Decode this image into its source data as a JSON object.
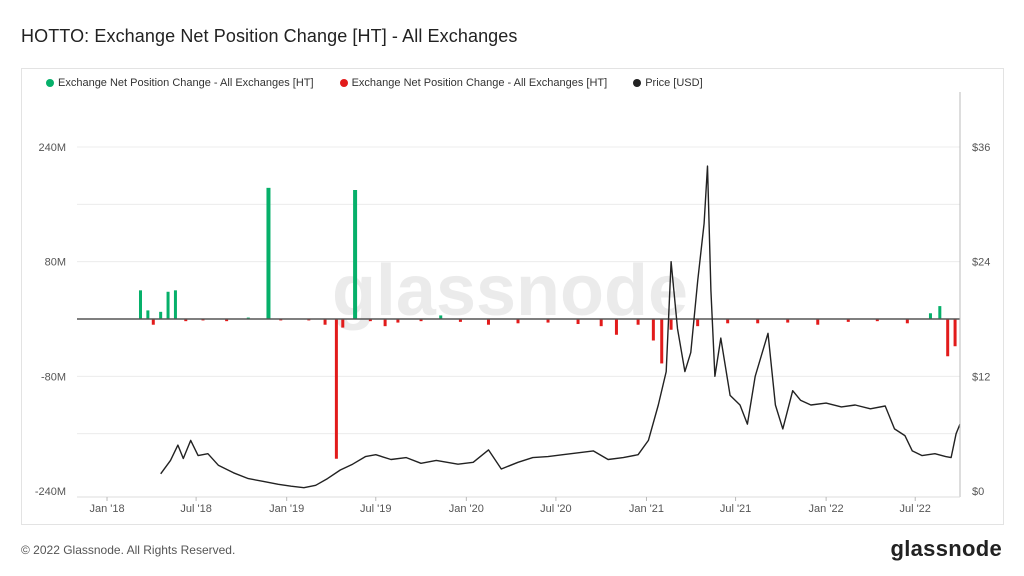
{
  "title": "HOTTO: Exchange Net Position Change [HT] - All Exchanges",
  "watermark": "glassnode",
  "footer": {
    "copyright": "© 2022 Glassnode. All Rights Reserved.",
    "logo": "glassnode"
  },
  "colors": {
    "positive": "#06b06a",
    "negative": "#e21b1b",
    "price": "#222222",
    "grid": "#ececec"
  },
  "chart_data": {
    "type": "bar",
    "title": "HOTTO: Exchange Net Position Change [HT] - All Exchanges",
    "legend": [
      {
        "label": "Exchange Net Position Change - All Exchanges [HT]",
        "color": "#06b06a"
      },
      {
        "label": "Exchange Net Position Change - All Exchanges [HT]",
        "color": "#e21b1b"
      },
      {
        "label": "Price [USD]",
        "color": "#222222"
      }
    ],
    "legend_position": "top-left",
    "x_ticks": [
      "Jan '18",
      "Jul '18",
      "Jan '19",
      "Jul '19",
      "Jan '20",
      "Jul '20",
      "Jan '21",
      "Jul '21",
      "Jan '22",
      "Jul '22"
    ],
    "y_left": {
      "ticks": [
        "240M",
        "80M",
        "-80M",
        "-240M"
      ],
      "range": [
        -240000000,
        240000000
      ]
    },
    "y_right": {
      "ticks": [
        "$36",
        "$24",
        "$12",
        "$0"
      ],
      "range": [
        0,
        36
      ]
    },
    "grid": true,
    "x_range": [
      "2017-11-01",
      "2022-09-30"
    ],
    "net_position_series": [
      {
        "date": "2018-03-10",
        "value": 40000000
      },
      {
        "date": "2018-03-25",
        "value": 12000000
      },
      {
        "date": "2018-04-05",
        "value": -8000000
      },
      {
        "date": "2018-04-20",
        "value": 10000000
      },
      {
        "date": "2018-05-05",
        "value": 38000000
      },
      {
        "date": "2018-05-20",
        "value": 40000000
      },
      {
        "date": "2018-06-10",
        "value": -3000000
      },
      {
        "date": "2018-07-15",
        "value": -2000000
      },
      {
        "date": "2018-09-01",
        "value": -3000000
      },
      {
        "date": "2018-10-15",
        "value": 2000000
      },
      {
        "date": "2018-11-25",
        "value": 183000000
      },
      {
        "date": "2018-12-20",
        "value": -2000000
      },
      {
        "date": "2019-02-15",
        "value": -2000000
      },
      {
        "date": "2019-03-20",
        "value": -8000000
      },
      {
        "date": "2019-04-12",
        "value": -195000000
      },
      {
        "date": "2019-04-25",
        "value": -12000000
      },
      {
        "date": "2019-05-20",
        "value": 180000000
      },
      {
        "date": "2019-06-20",
        "value": -3000000
      },
      {
        "date": "2019-07-20",
        "value": -10000000
      },
      {
        "date": "2019-08-15",
        "value": -5000000
      },
      {
        "date": "2019-10-01",
        "value": -3000000
      },
      {
        "date": "2019-11-10",
        "value": 5000000
      },
      {
        "date": "2019-12-20",
        "value": -4000000
      },
      {
        "date": "2020-02-15",
        "value": -8000000
      },
      {
        "date": "2020-04-15",
        "value": -6000000
      },
      {
        "date": "2020-06-15",
        "value": -5000000
      },
      {
        "date": "2020-08-15",
        "value": -7000000
      },
      {
        "date": "2020-10-01",
        "value": -10000000
      },
      {
        "date": "2020-11-01",
        "value": -22000000
      },
      {
        "date": "2020-12-15",
        "value": -8000000
      },
      {
        "date": "2021-01-15",
        "value": -30000000
      },
      {
        "date": "2021-02-01",
        "value": -62000000
      },
      {
        "date": "2021-02-20",
        "value": -15000000
      },
      {
        "date": "2021-04-15",
        "value": -10000000
      },
      {
        "date": "2021-06-15",
        "value": -6000000
      },
      {
        "date": "2021-08-15",
        "value": -6000000
      },
      {
        "date": "2021-10-15",
        "value": -5000000
      },
      {
        "date": "2021-12-15",
        "value": -8000000
      },
      {
        "date": "2022-02-15",
        "value": -4000000
      },
      {
        "date": "2022-04-15",
        "value": -3000000
      },
      {
        "date": "2022-06-15",
        "value": -6000000
      },
      {
        "date": "2022-08-01",
        "value": 8000000
      },
      {
        "date": "2022-08-20",
        "value": 18000000
      },
      {
        "date": "2022-09-05",
        "value": -52000000
      },
      {
        "date": "2022-09-20",
        "value": -38000000
      }
    ],
    "price_series": [
      {
        "date": "2018-04-20",
        "value": 1.8
      },
      {
        "date": "2018-05-10",
        "value": 3.2
      },
      {
        "date": "2018-05-25",
        "value": 4.8
      },
      {
        "date": "2018-06-05",
        "value": 3.4
      },
      {
        "date": "2018-06-20",
        "value": 5.3
      },
      {
        "date": "2018-07-05",
        "value": 3.7
      },
      {
        "date": "2018-07-25",
        "value": 3.9
      },
      {
        "date": "2018-08-15",
        "value": 2.7
      },
      {
        "date": "2018-09-15",
        "value": 1.9
      },
      {
        "date": "2018-10-15",
        "value": 1.3
      },
      {
        "date": "2018-11-15",
        "value": 1.0
      },
      {
        "date": "2018-12-15",
        "value": 0.7
      },
      {
        "date": "2019-01-10",
        "value": 0.5
      },
      {
        "date": "2019-02-05",
        "value": 0.35
      },
      {
        "date": "2019-03-01",
        "value": 0.6
      },
      {
        "date": "2019-03-25",
        "value": 1.3
      },
      {
        "date": "2019-04-20",
        "value": 2.2
      },
      {
        "date": "2019-05-15",
        "value": 2.8
      },
      {
        "date": "2019-06-10",
        "value": 3.6
      },
      {
        "date": "2019-07-01",
        "value": 3.8
      },
      {
        "date": "2019-08-01",
        "value": 3.3
      },
      {
        "date": "2019-09-01",
        "value": 3.5
      },
      {
        "date": "2019-10-01",
        "value": 2.9
      },
      {
        "date": "2019-11-01",
        "value": 3.2
      },
      {
        "date": "2019-12-15",
        "value": 2.8
      },
      {
        "date": "2020-01-15",
        "value": 3.0
      },
      {
        "date": "2020-02-15",
        "value": 4.3
      },
      {
        "date": "2020-03-12",
        "value": 2.3
      },
      {
        "date": "2020-04-15",
        "value": 3.0
      },
      {
        "date": "2020-05-15",
        "value": 3.5
      },
      {
        "date": "2020-06-15",
        "value": 3.6
      },
      {
        "date": "2020-07-15",
        "value": 3.8
      },
      {
        "date": "2020-08-15",
        "value": 4.0
      },
      {
        "date": "2020-09-15",
        "value": 4.2
      },
      {
        "date": "2020-10-15",
        "value": 3.3
      },
      {
        "date": "2020-11-15",
        "value": 3.5
      },
      {
        "date": "2020-12-15",
        "value": 3.8
      },
      {
        "date": "2021-01-05",
        "value": 5.3
      },
      {
        "date": "2021-01-25",
        "value": 9.0
      },
      {
        "date": "2021-02-10",
        "value": 12.5
      },
      {
        "date": "2021-02-20",
        "value": 24.0
      },
      {
        "date": "2021-03-05",
        "value": 17.0
      },
      {
        "date": "2021-03-20",
        "value": 12.5
      },
      {
        "date": "2021-04-01",
        "value": 14.5
      },
      {
        "date": "2021-04-15",
        "value": 22.0
      },
      {
        "date": "2021-04-28",
        "value": 28.0
      },
      {
        "date": "2021-05-05",
        "value": 34.0
      },
      {
        "date": "2021-05-12",
        "value": 21.0
      },
      {
        "date": "2021-05-20",
        "value": 12.0
      },
      {
        "date": "2021-06-01",
        "value": 16.0
      },
      {
        "date": "2021-06-20",
        "value": 10.0
      },
      {
        "date": "2021-07-10",
        "value": 9.0
      },
      {
        "date": "2021-07-25",
        "value": 7.0
      },
      {
        "date": "2021-08-10",
        "value": 12.0
      },
      {
        "date": "2021-09-05",
        "value": 16.5
      },
      {
        "date": "2021-09-20",
        "value": 9.0
      },
      {
        "date": "2021-10-05",
        "value": 6.5
      },
      {
        "date": "2021-10-25",
        "value": 10.5
      },
      {
        "date": "2021-11-10",
        "value": 9.5
      },
      {
        "date": "2021-12-01",
        "value": 9.0
      },
      {
        "date": "2022-01-01",
        "value": 9.2
      },
      {
        "date": "2022-02-01",
        "value": 8.8
      },
      {
        "date": "2022-03-01",
        "value": 9.0
      },
      {
        "date": "2022-04-01",
        "value": 8.6
      },
      {
        "date": "2022-05-01",
        "value": 8.9
      },
      {
        "date": "2022-05-20",
        "value": 6.5
      },
      {
        "date": "2022-06-10",
        "value": 5.8
      },
      {
        "date": "2022-06-25",
        "value": 4.2
      },
      {
        "date": "2022-07-15",
        "value": 3.7
      },
      {
        "date": "2022-08-10",
        "value": 3.9
      },
      {
        "date": "2022-09-01",
        "value": 3.6
      },
      {
        "date": "2022-09-12",
        "value": 3.5
      },
      {
        "date": "2022-09-22",
        "value": 6.0
      },
      {
        "date": "2022-09-30",
        "value": 7.0
      }
    ]
  }
}
